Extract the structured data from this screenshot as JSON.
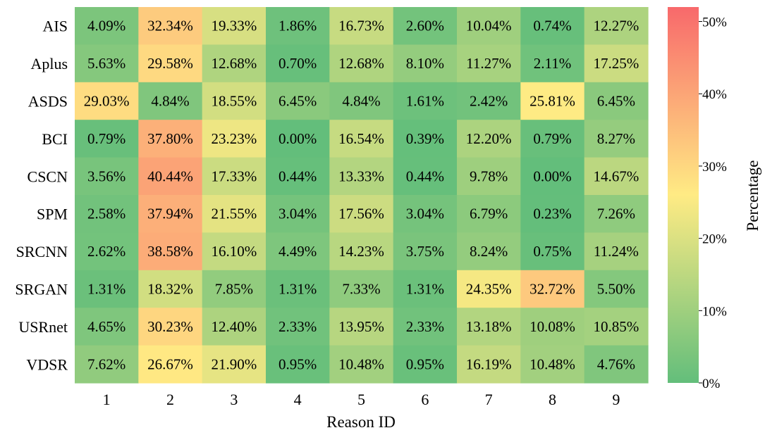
{
  "chart_data": {
    "type": "heatmap",
    "title": "",
    "xlabel": "Reason ID",
    "ylabel": "",
    "rows": [
      "AIS",
      "Aplus",
      "ASDS",
      "BCI",
      "CSCN",
      "SPM",
      "SRCNN",
      "SRGAN",
      "USRnet",
      "VDSR"
    ],
    "columns": [
      "1",
      "2",
      "3",
      "4",
      "5",
      "6",
      "7",
      "8",
      "9"
    ],
    "values": [
      [
        4.09,
        32.34,
        19.33,
        1.86,
        16.73,
        2.6,
        10.04,
        0.74,
        12.27
      ],
      [
        5.63,
        29.58,
        12.68,
        0.7,
        12.68,
        8.1,
        11.27,
        2.11,
        17.25
      ],
      [
        29.03,
        4.84,
        18.55,
        6.45,
        4.84,
        1.61,
        2.42,
        25.81,
        6.45
      ],
      [
        0.79,
        37.8,
        23.23,
        0.0,
        16.54,
        0.39,
        12.2,
        0.79,
        8.27
      ],
      [
        3.56,
        40.44,
        17.33,
        0.44,
        13.33,
        0.44,
        9.78,
        0.0,
        14.67
      ],
      [
        2.58,
        37.94,
        21.55,
        3.04,
        17.56,
        3.04,
        6.79,
        0.23,
        7.26
      ],
      [
        2.62,
        38.58,
        16.1,
        4.49,
        14.23,
        3.75,
        8.24,
        0.75,
        11.24
      ],
      [
        1.31,
        18.32,
        7.85,
        1.31,
        7.33,
        1.31,
        24.35,
        32.72,
        5.5
      ],
      [
        4.65,
        30.23,
        12.4,
        2.33,
        13.95,
        2.33,
        13.18,
        10.08,
        10.85
      ],
      [
        7.62,
        26.67,
        21.9,
        0.95,
        10.48,
        0.95,
        16.19,
        10.48,
        4.76
      ]
    ],
    "value_format": "%",
    "colorbar": {
      "label": "Percentage",
      "range": [
        0,
        52
      ],
      "ticks": [
        0,
        10,
        20,
        30,
        40,
        50
      ],
      "tick_labels": [
        "0%",
        "10%",
        "20%",
        "30%",
        "40%",
        "50%"
      ],
      "colors": [
        "#63be7b",
        "#ffeb84",
        "#f8696b"
      ]
    },
    "grid": false,
    "legend": "colorbar-right"
  }
}
